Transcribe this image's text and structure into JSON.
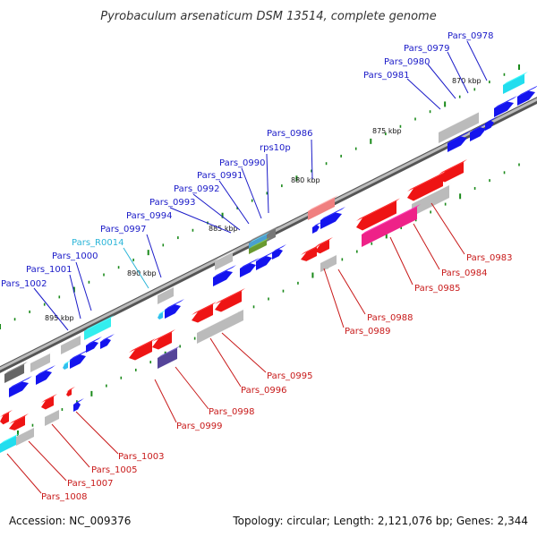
{
  "title": "Pyrobaculum arsenaticum DSM 13514, complete genome",
  "footer": {
    "accession": "Accession: NC_009376",
    "summary": "Topology: circular; Length: 2,121,076 bp; Genes: 2,344"
  },
  "colors": {
    "forward_cds": "#1414ee",
    "reverse_cds": "#ee1414",
    "rna": "#2fc0ee",
    "other_gene": "#aaaaaa",
    "backbone": "#888888",
    "tick": "#1a8a1a",
    "label_forward": "#1a1ac8",
    "label_reverse": "#c81a1a",
    "label_rna": "#2bb5d8"
  },
  "kbp_marks": [
    "870 kbp",
    "875 kbp",
    "880 kbp",
    "885 kbp",
    "890 kbp",
    "895 kbp"
  ],
  "genes_forward": [
    "Pars_0978",
    "Pars_0979",
    "Pars_0980",
    "Pars_0981",
    "Pars_0986",
    "rps10p",
    "Pars_0990",
    "Pars_0991",
    "Pars_0992",
    "Pars_0993",
    "Pars_0994",
    "Pars_0997",
    "Pars_R0014",
    "Pars_1000",
    "Pars_1001",
    "Pars_1002"
  ],
  "genes_reverse": [
    "Pars_0983",
    "Pars_0984",
    "Pars_0985",
    "Pars_0988",
    "Pars_0989",
    "Pars_0995",
    "Pars_0996",
    "Pars_0998",
    "Pars_0999",
    "Pars_1003",
    "Pars_1005",
    "Pars_1007",
    "Pars_1008"
  ]
}
